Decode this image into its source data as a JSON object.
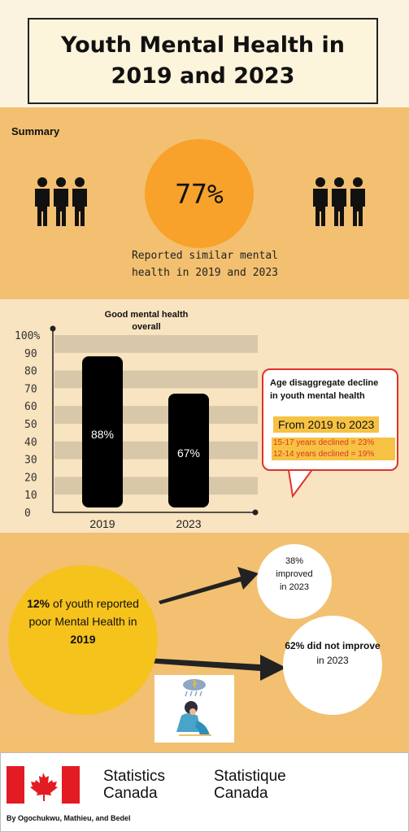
{
  "header": {
    "title": "Youth Mental Health in\n2019 and 2023"
  },
  "summary": {
    "label": "Summary",
    "percent": "77%",
    "description": "Reported similar mental\nhealth in 2019 and 2023",
    "icons": [
      "people-icon",
      "people-icon"
    ]
  },
  "chart_data": {
    "type": "bar",
    "title": "Good mental health\noverall",
    "categories": [
      "2019",
      "2023"
    ],
    "values": [
      88,
      67
    ],
    "value_labels": [
      "88%",
      "67%"
    ],
    "y_ticks": [
      "0",
      "10",
      "20",
      "30",
      "40",
      "50",
      "60",
      "70",
      "80",
      "90",
      "100%"
    ],
    "ylim": [
      0,
      100
    ],
    "bar_color": "#000000",
    "grid_band_color": "#d8c7a8"
  },
  "callout": {
    "heading": "Age disaggregate decline\nin youth mental health",
    "period": "From 2019 to 2023",
    "declines": [
      "15-17 years declined = 23%",
      "12-14 years declined = 19%"
    ]
  },
  "improvement": {
    "poor_pct": "12%",
    "poor_text_1": " of youth reported poor Mental Health in ",
    "poor_year": "2019",
    "improved_text": "38%\nimproved\nin 2023",
    "not_improved_bold": "62% did not improve",
    "not_improved_year": "in 2023"
  },
  "footer": {
    "agency_en": "Statistics\nCanada",
    "agency_fr": "Statistique\nCanada",
    "byline": "By Ogochukwu, Mathieu, and Bedel"
  },
  "colors": {
    "orange": "#f8a22b",
    "tan": "#f2c070",
    "yellow": "#f6c21c",
    "red": "#e0332a"
  }
}
